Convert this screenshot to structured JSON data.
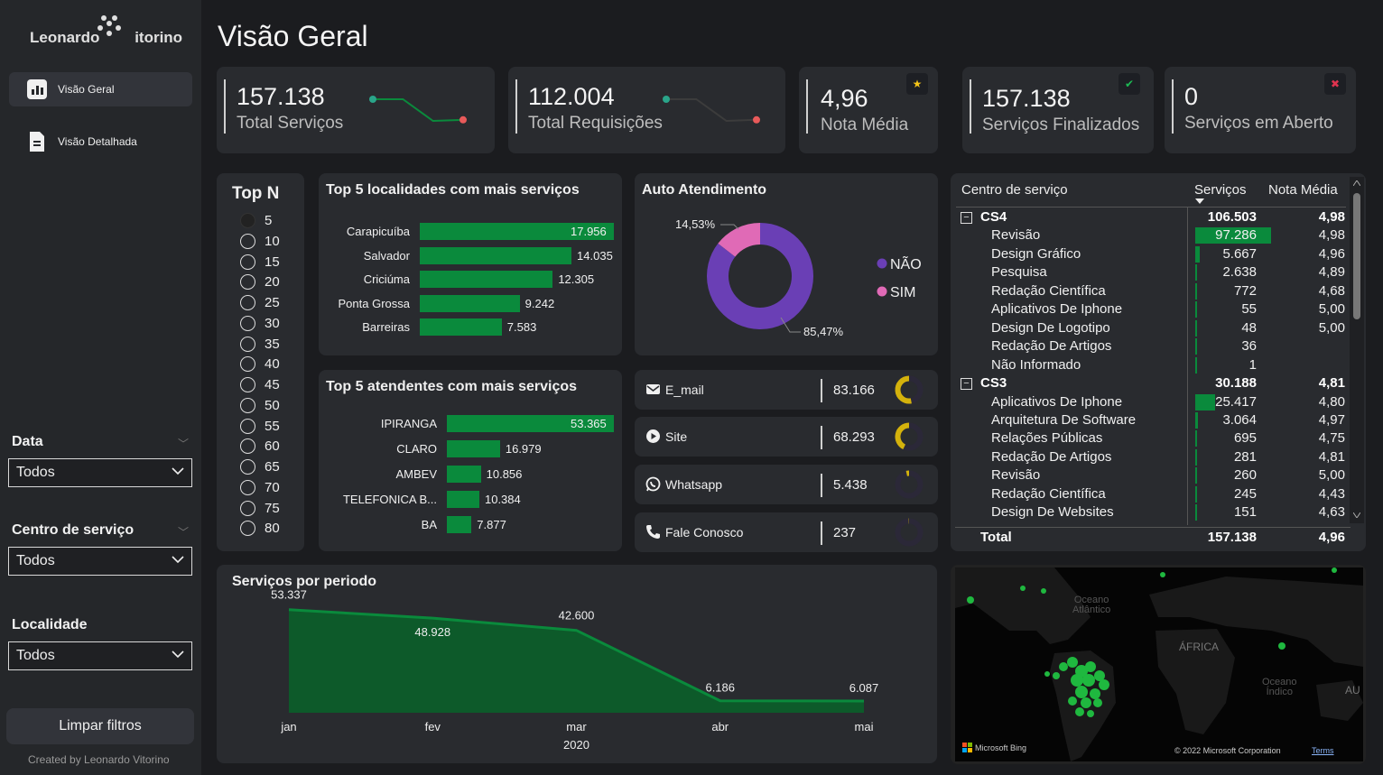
{
  "sidebar": {
    "logo_text_left": "Leonardo",
    "logo_text_right": "itorino",
    "nav": [
      {
        "label": "Visão Geral",
        "icon": "bar-chart-icon",
        "active": true
      },
      {
        "label": "Visão Detalhada",
        "icon": "document-icon",
        "active": false
      }
    ],
    "filters": [
      {
        "label": "Data",
        "value": "Todos"
      },
      {
        "label": "Centro de serviço",
        "value": "Todos"
      },
      {
        "label": "Localidade",
        "value": "Todos"
      }
    ],
    "clear_button": "Limpar filtros",
    "credit": "Created by Leonardo Vitorino"
  },
  "page_title": "Visão Geral",
  "kpis": [
    {
      "value": "157.138",
      "label": "Total Serviços",
      "trend": [
        0.0,
        0.0,
        1.0,
        0.95
      ]
    },
    {
      "value": "112.004",
      "label": "Total Requisições",
      "trend": [
        0.0,
        0.0,
        1.0,
        0.95
      ]
    },
    {
      "value": "4,96",
      "label": "Nota Média",
      "badge": "star-icon",
      "badge_color": "#f5c518"
    },
    {
      "value": "157.138",
      "label": "Serviços Finalizados",
      "badge": "check-icon",
      "badge_color": "#1db954"
    },
    {
      "value": "0",
      "label": "Serviços em Aberto",
      "badge": "close-icon",
      "badge_color": "#e0334f"
    }
  ],
  "topn": {
    "title": "Top N",
    "options": [
      "5",
      "10",
      "15",
      "20",
      "25",
      "30",
      "35",
      "40",
      "45",
      "50",
      "55",
      "60",
      "65",
      "70",
      "75",
      "80"
    ],
    "selected": "5"
  },
  "top_localidades": {
    "title": "Top 5 localidades com mais serviços",
    "chart_data": {
      "type": "bar",
      "categories": [
        "Carapicuíba",
        "Salvador",
        "Criciúma",
        "Ponta Grossa",
        "Barreiras"
      ],
      "values": [
        17956,
        14035,
        12305,
        9242,
        7583
      ],
      "labels": [
        "17.956",
        "14.035",
        "12.305",
        "9.242",
        "7.583"
      ]
    }
  },
  "top_atendentes": {
    "title": "Top 5 atendentes com mais serviços",
    "chart_data": {
      "type": "bar",
      "categories": [
        "IPIRANGA",
        "CLARO",
        "AMBEV",
        "TELEFONICA B...",
        "BA"
      ],
      "values": [
        53365,
        16979,
        10856,
        10384,
        7877
      ],
      "labels": [
        "53.365",
        "16.979",
        "10.856",
        "10.384",
        "7.877"
      ]
    }
  },
  "auto_atendimento": {
    "title": "Auto Atendimento",
    "chart_data": {
      "type": "pie",
      "series": [
        {
          "name": "NÃO",
          "value": 85.47,
          "label": "85,47%",
          "color": "#6a3fb5"
        },
        {
          "name": "SIM",
          "value": 14.53,
          "label": "14,53%",
          "color": "#e06ab6"
        }
      ]
    }
  },
  "channels": [
    {
      "name": "E_mail",
      "icon": "mail-icon",
      "value": "83.166",
      "fraction": 0.53
    },
    {
      "name": "Site",
      "icon": "play-icon",
      "value": "68.293",
      "fraction": 0.43
    },
    {
      "name": "Whatsapp",
      "icon": "whatsapp-icon",
      "value": "5.438",
      "fraction": 0.035
    },
    {
      "name": "Fale Conosco",
      "icon": "phone-icon",
      "value": "237",
      "fraction": 0.0015
    }
  ],
  "channel_colors": {
    "accent": "#d4b20c",
    "track": "#2b2838"
  },
  "matrix": {
    "headers": {
      "center": "Centro de serviço",
      "services": "Serviços",
      "rating": "Nota Média"
    },
    "rows": [
      {
        "type": "group",
        "name": "CS4",
        "services": "106.503",
        "rating": "4,98",
        "value": 106503
      },
      {
        "type": "child",
        "name": "Revisão",
        "services": "97.286",
        "rating": "4,98",
        "value": 97286
      },
      {
        "type": "child",
        "name": "Design Gráfico",
        "services": "5.667",
        "rating": "4,96",
        "value": 5667
      },
      {
        "type": "child",
        "name": "Pesquisa",
        "services": "2.638",
        "rating": "4,89",
        "value": 2638
      },
      {
        "type": "child",
        "name": "Redação Científica",
        "services": "772",
        "rating": "4,68",
        "value": 772
      },
      {
        "type": "child",
        "name": "Aplicativos De Iphone",
        "services": "55",
        "rating": "5,00",
        "value": 55
      },
      {
        "type": "child",
        "name": "Design De Logotipo",
        "services": "48",
        "rating": "5,00",
        "value": 48
      },
      {
        "type": "child",
        "name": "Redação De Artigos",
        "services": "36",
        "rating": "",
        "value": 36
      },
      {
        "type": "child",
        "name": "Não Informado",
        "services": "1",
        "rating": "",
        "value": 1
      },
      {
        "type": "group",
        "name": "CS3",
        "services": "30.188",
        "rating": "4,81",
        "value": 30188
      },
      {
        "type": "child",
        "name": "Aplicativos De Iphone",
        "services": "25.417",
        "rating": "4,80",
        "value": 25417
      },
      {
        "type": "child",
        "name": "Arquitetura De Software",
        "services": "3.064",
        "rating": "4,97",
        "value": 3064
      },
      {
        "type": "child",
        "name": "Relações Públicas",
        "services": "695",
        "rating": "4,75",
        "value": 695
      },
      {
        "type": "child",
        "name": "Redação De Artigos",
        "services": "281",
        "rating": "4,81",
        "value": 281
      },
      {
        "type": "child",
        "name": "Revisão",
        "services": "260",
        "rating": "5,00",
        "value": 260
      },
      {
        "type": "child",
        "name": "Redação Científica",
        "services": "245",
        "rating": "4,43",
        "value": 245
      },
      {
        "type": "child",
        "name": "Design De Websites",
        "services": "151",
        "rating": "4,63",
        "value": 151
      }
    ],
    "total": {
      "name": "Total",
      "services": "157.138",
      "rating": "4,96"
    }
  },
  "servicos_periodo": {
    "title": "Serviços por periodo",
    "chart_data": {
      "type": "area",
      "categories": [
        "jan",
        "fev",
        "mar",
        "abr",
        "mai"
      ],
      "values": [
        53337,
        48928,
        42600,
        6186,
        6087
      ],
      "labels": [
        "53.337",
        "48.928",
        "42.600",
        "6.186",
        "6.087"
      ],
      "year_label": "2020"
    }
  },
  "map": {
    "labels": [
      "Oceano",
      "Atlântico",
      "ÁFRICA",
      "Oceano",
      "Índico",
      "AU"
    ],
    "footer_brand": "Microsoft Bing",
    "footer_copyright": "© 2022 Microsoft Corporation",
    "footer_terms": "Terms"
  }
}
